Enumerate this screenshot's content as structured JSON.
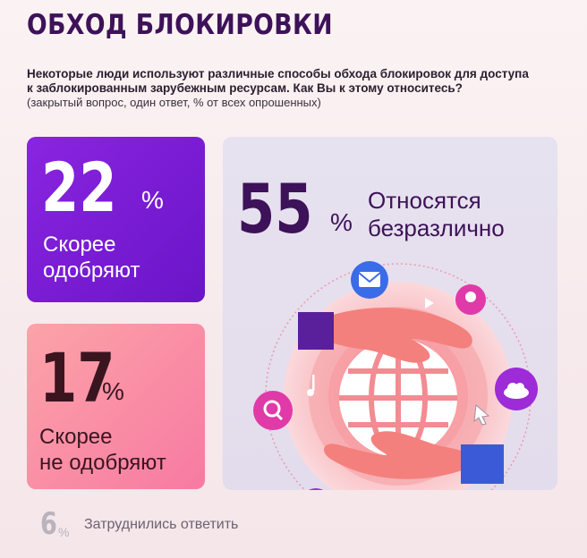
{
  "title": "ОБХОД БЛОКИРОВКИ",
  "question_line1": "Некоторые люди используют различные способы обхода блокировок для доступа",
  "question_line2": "к заблокированным зарубежным ресурсам. Как Вы к этому относитесь?",
  "note": "(закрытый вопрос, один ответ, % от всех опрошенных)",
  "percent_sign": "%",
  "chart_data": {
    "type": "table",
    "items": [
      {
        "value": 22,
        "label_line1": "Скорее",
        "label_line2": "одобряют",
        "color": "#7a1ed8"
      },
      {
        "value": 17,
        "label_line1": "Скорее",
        "label_line2": "не одобряют",
        "color": "#f98aa5"
      },
      {
        "value": 55,
        "label_line1": "Относятся",
        "label_line2": "безразлично",
        "color": "#3d1259"
      },
      {
        "value": 6,
        "label_line1": "Затруднились ответить",
        "label_line2": "",
        "color": "#b8b3bd"
      }
    ]
  }
}
